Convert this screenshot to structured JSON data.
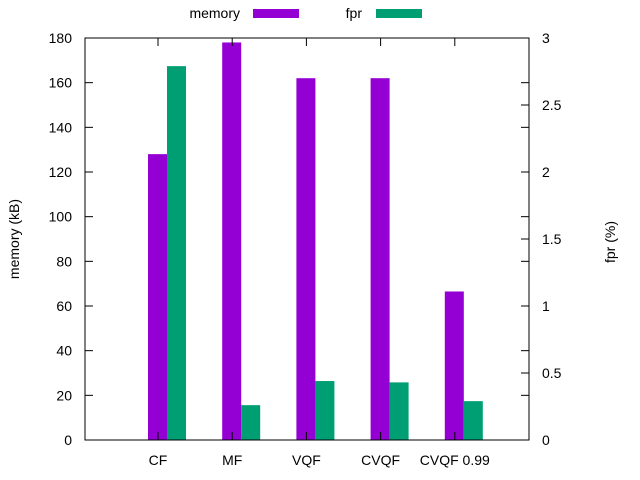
{
  "chart_data": {
    "type": "bar",
    "categories": [
      "CF",
      "MF",
      "VQF",
      "CVQF",
      "CVQF 0.99"
    ],
    "series": [
      {
        "name": "memory",
        "axis": "left",
        "color": "#9400d3",
        "values": [
          128,
          178,
          162,
          162,
          66.5
        ]
      },
      {
        "name": "fpr",
        "axis": "right",
        "color": "#009e73",
        "values": [
          2.79,
          0.26,
          0.44,
          0.43,
          0.29
        ]
      }
    ],
    "ylabel": "memory (kB)",
    "y2label": "fpr (%)",
    "ylim": [
      0,
      180
    ],
    "y2lim": [
      0,
      3
    ],
    "yticks": [
      "0",
      "20",
      "40",
      "60",
      "80",
      "100",
      "120",
      "140",
      "160",
      "180"
    ],
    "y2ticks": [
      "0",
      "0.5",
      "1",
      "1.5",
      "2",
      "2.5",
      "3"
    ],
    "grid": false,
    "legend_position": "top-center"
  }
}
